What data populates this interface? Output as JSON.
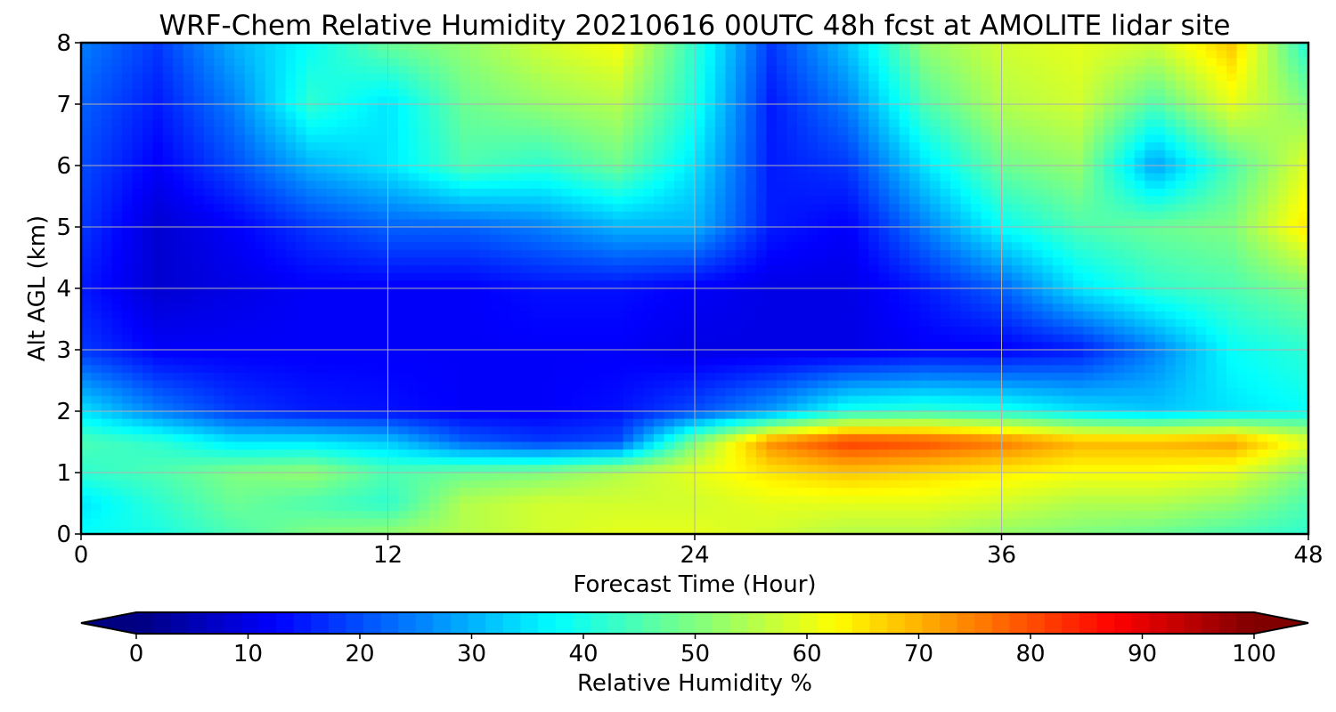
{
  "chart_data": {
    "type": "heatmap",
    "title": "WRF-Chem Relative Humidity 20210616 00UTC 48h fcst at AMOLITE lidar site",
    "xlabel": "Forecast Time (Hour)",
    "ylabel": "Alt AGL (km)",
    "xlim": [
      0,
      48
    ],
    "ylim": [
      0,
      8
    ],
    "x_ticks": [
      "0",
      "12",
      "24",
      "36",
      "48"
    ],
    "y_ticks": [
      "0",
      "1",
      "2",
      "3",
      "4",
      "5",
      "6",
      "7",
      "8"
    ],
    "grid": true,
    "colormap": "jet",
    "colorbar": {
      "label": "Relative Humidity %",
      "range": [
        0,
        100
      ],
      "ticks": [
        "0",
        "10",
        "20",
        "30",
        "40",
        "50",
        "60",
        "70",
        "80",
        "90",
        "100"
      ],
      "extend": "both",
      "orientation": "horizontal",
      "position": "bottom"
    },
    "x": [
      0,
      3,
      6,
      9,
      12,
      15,
      18,
      21,
      24,
      27,
      30,
      33,
      36,
      39,
      42,
      45,
      48
    ],
    "y": [
      0,
      0.5,
      1,
      1.5,
      2,
      3,
      4,
      5,
      6,
      7,
      8
    ],
    "z_units": "%",
    "z": [
      [
        38,
        40,
        45,
        50,
        52,
        55,
        58,
        60,
        60,
        58,
        55,
        55,
        52,
        50,
        48,
        45,
        42
      ],
      [
        35,
        42,
        48,
        45,
        42,
        55,
        58,
        58,
        58,
        60,
        60,
        60,
        58,
        55,
        55,
        52,
        45
      ],
      [
        42,
        45,
        50,
        52,
        45,
        48,
        50,
        55,
        60,
        65,
        68,
        66,
        64,
        62,
        62,
        60,
        50
      ],
      [
        45,
        42,
        35,
        35,
        32,
        22,
        18,
        20,
        50,
        74,
        82,
        80,
        76,
        70,
        70,
        72,
        60
      ],
      [
        35,
        25,
        18,
        15,
        14,
        12,
        12,
        14,
        20,
        28,
        40,
        42,
        40,
        35,
        32,
        35,
        38
      ],
      [
        18,
        12,
        12,
        12,
        12,
        12,
        12,
        12,
        10,
        10,
        10,
        12,
        12,
        15,
        25,
        38,
        42
      ],
      [
        15,
        8,
        10,
        12,
        12,
        12,
        14,
        14,
        12,
        10,
        10,
        15,
        22,
        35,
        42,
        45,
        50
      ],
      [
        18,
        8,
        12,
        18,
        22,
        22,
        25,
        30,
        30,
        15,
        12,
        25,
        38,
        45,
        48,
        50,
        65
      ],
      [
        20,
        12,
        20,
        30,
        35,
        45,
        42,
        48,
        35,
        15,
        18,
        35,
        48,
        52,
        28,
        45,
        60
      ],
      [
        22,
        15,
        25,
        42,
        35,
        48,
        52,
        55,
        40,
        15,
        25,
        45,
        55,
        58,
        45,
        60,
        50
      ],
      [
        25,
        18,
        30,
        38,
        48,
        52,
        58,
        62,
        42,
        18,
        32,
        52,
        58,
        60,
        58,
        68,
        40
      ]
    ]
  }
}
